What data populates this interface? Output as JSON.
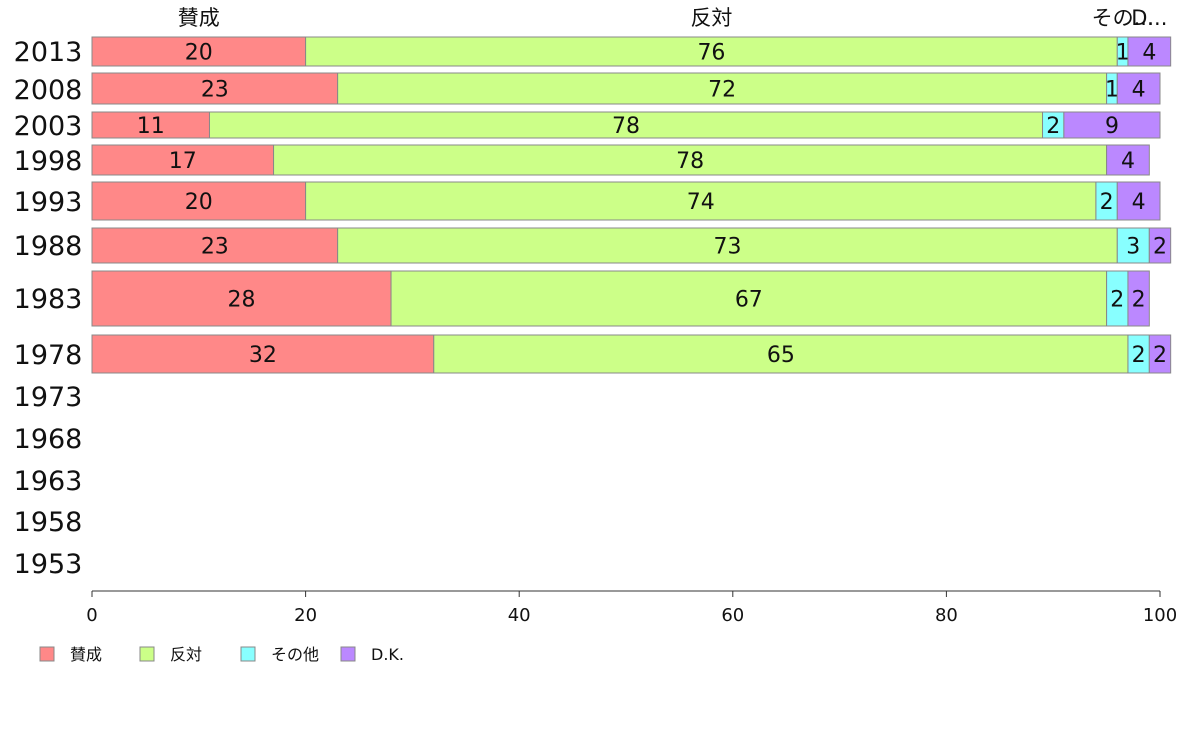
{
  "chart_data": {
    "type": "bar",
    "orientation": "horizontal",
    "stacked": true,
    "categories": [
      "2013",
      "2008",
      "2003",
      "1998",
      "1993",
      "1988",
      "1983",
      "1978",
      "1973",
      "1968",
      "1963",
      "1958",
      "1953"
    ],
    "series": [
      {
        "name": "賛成",
        "header": "賛成",
        "color": "#ff8888",
        "values": [
          20,
          23,
          11,
          17,
          20,
          23,
          28,
          32,
          null,
          null,
          null,
          null,
          null
        ]
      },
      {
        "name": "反対",
        "header": "反対",
        "color": "#ccff88",
        "values": [
          76,
          72,
          78,
          78,
          74,
          73,
          67,
          65,
          null,
          null,
          null,
          null,
          null
        ]
      },
      {
        "name": "その他",
        "header": "その...",
        "color": "#88ffff",
        "values": [
          1,
          1,
          2,
          0,
          2,
          3,
          2,
          2,
          null,
          null,
          null,
          null,
          null
        ]
      },
      {
        "name": "D.K.",
        "header": "D...",
        "color": "#bb88ff",
        "values": [
          4,
          4,
          9,
          4,
          4,
          2,
          2,
          2,
          null,
          null,
          null,
          null,
          null
        ]
      }
    ],
    "xlim": [
      0,
      100
    ],
    "xticks": [
      0,
      20,
      40,
      60,
      80,
      100
    ],
    "legend": "bottom-left",
    "grid": false
  }
}
